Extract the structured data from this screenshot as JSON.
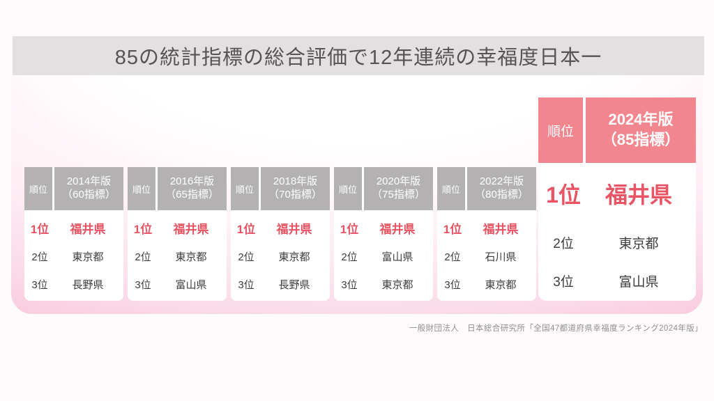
{
  "title": "85の統計指標の総合評価で12年連続の幸福度日本一",
  "tables": [
    {
      "rank_header": "順位",
      "year_line1": "2014年版",
      "year_line2": "（60指標）",
      "rows": [
        {
          "rank": "1位",
          "name": "福井県"
        },
        {
          "rank": "2位",
          "name": "東京都"
        },
        {
          "rank": "3位",
          "name": "長野県"
        }
      ]
    },
    {
      "rank_header": "順位",
      "year_line1": "2016年版",
      "year_line2": "（65指標）",
      "rows": [
        {
          "rank": "1位",
          "name": "福井県"
        },
        {
          "rank": "2位",
          "name": "東京都"
        },
        {
          "rank": "3位",
          "name": "富山県"
        }
      ]
    },
    {
      "rank_header": "順位",
      "year_line1": "2018年版",
      "year_line2": "（70指標）",
      "rows": [
        {
          "rank": "1位",
          "name": "福井県"
        },
        {
          "rank": "2位",
          "name": "東京都"
        },
        {
          "rank": "3位",
          "name": "長野県"
        }
      ]
    },
    {
      "rank_header": "順位",
      "year_line1": "2020年版",
      "year_line2": "（75指標）",
      "rows": [
        {
          "rank": "1位",
          "name": "福井県"
        },
        {
          "rank": "2位",
          "name": "富山県"
        },
        {
          "rank": "3位",
          "name": "東京都"
        }
      ]
    },
    {
      "rank_header": "順位",
      "year_line1": "2022年版",
      "year_line2": "（80指標）",
      "rows": [
        {
          "rank": "1位",
          "name": "福井県"
        },
        {
          "rank": "2位",
          "name": "石川県"
        },
        {
          "rank": "3位",
          "name": "東京都"
        }
      ]
    }
  ],
  "featured": {
    "rank_header": "順位",
    "year_line1": "2024年版",
    "year_line2": "（85指標）",
    "rows": [
      {
        "rank": "1位",
        "name": "福井県"
      },
      {
        "rank": "2位",
        "name": "東京都"
      },
      {
        "rank": "3位",
        "name": "富山県"
      }
    ]
  },
  "source": "一般財団法人　日本総合研究所「全国47都道府県幸福度ランキング2024年版」",
  "colors": {
    "title_bar_bg": "#e3e0e1",
    "title_text": "#565354",
    "table_header_gray": "#b3b1b2",
    "featured_header_pink": "#f2868e",
    "rank1_red": "#e85463",
    "body_text": "#3f3c3e",
    "panel_pink_bottom": "#f4b8d1",
    "source_text": "#8f8d8e"
  }
}
